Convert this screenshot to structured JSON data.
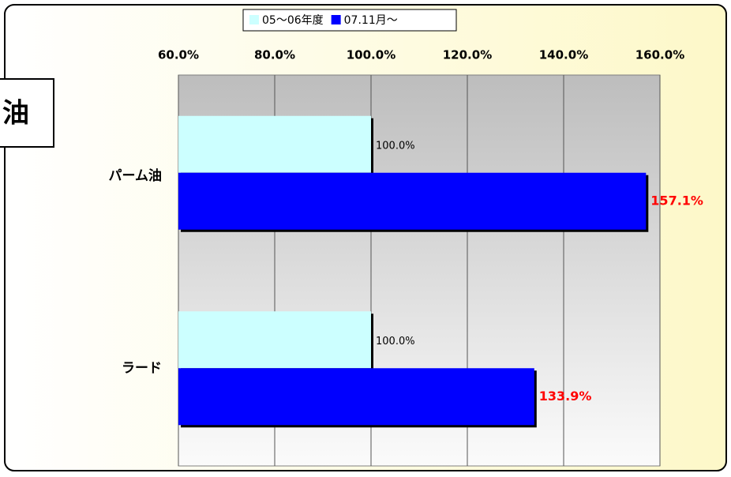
{
  "chart_data": {
    "type": "bar",
    "orientation": "horizontal",
    "annotation": "油",
    "categories": [
      "パーム油",
      "ラード"
    ],
    "series": [
      {
        "name": "05～06年度",
        "color": "#ccffff",
        "values": [
          100,
          100
        ],
        "value_labels": [
          "100.0%",
          "100.0%"
        ],
        "label_color": "#000000"
      },
      {
        "name": "07.11月～",
        "color": "#0000ff",
        "values": [
          157.1,
          133.9
        ],
        "value_labels": [
          "157.1%",
          "133.9%"
        ],
        "label_color": "#ff0000"
      }
    ],
    "xlim": [
      60,
      160
    ],
    "xticks": [
      {
        "value": 60,
        "label": "60.0%"
      },
      {
        "value": 80,
        "label": "80.0%"
      },
      {
        "value": 100,
        "label": "100.0%"
      },
      {
        "value": 120,
        "label": "120.0%"
      },
      {
        "value": 140,
        "label": "140.0%"
      },
      {
        "value": 160,
        "label": "160.0%"
      }
    ],
    "grid": true,
    "legend": "top"
  }
}
